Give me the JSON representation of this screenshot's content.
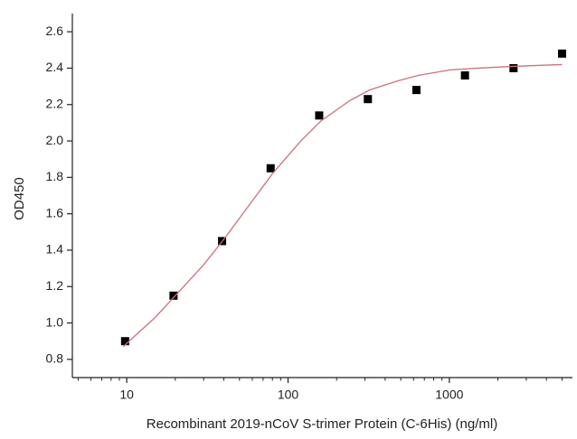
{
  "chart_data": {
    "type": "scatter",
    "xlabel": "Recombinant 2019-nCoV S-trimer Protein (C-6His) (ng/ml)",
    "ylabel": "OD450",
    "xscale": "log",
    "xlim": [
      4.6,
      5800
    ],
    "ylim": [
      0.7,
      2.7
    ],
    "xticks": [
      10,
      100,
      1000
    ],
    "xminor_ticks": [
      5,
      6,
      7,
      8,
      9,
      20,
      30,
      40,
      50,
      60,
      70,
      80,
      90,
      200,
      300,
      400,
      500,
      600,
      700,
      800,
      900,
      2000,
      3000,
      4000,
      5000
    ],
    "yticks": [
      {
        "value": 0.8,
        "label": "0.8"
      },
      {
        "value": 1.0,
        "label": "1.0"
      },
      1.2,
      1.4,
      1.6,
      1.8,
      {
        "value": 2.0,
        "label": "2.0"
      },
      2.2,
      2.4,
      2.6
    ],
    "grid": false,
    "series": [
      {
        "kind": "points",
        "color": "#000000",
        "x": [
          9.77,
          19.5,
          39,
          78,
          156,
          312.5,
          625,
          1250,
          2500,
          5000
        ],
        "values": [
          0.9,
          1.15,
          1.45,
          1.85,
          2.14,
          2.23,
          2.28,
          2.36,
          2.4,
          2.48
        ]
      },
      {
        "kind": "line",
        "color": "#c8737a",
        "x": [
          9.5,
          15,
          20,
          30,
          40,
          60,
          80,
          120,
          160,
          240,
          320,
          480,
          640,
          1000,
          1500,
          2500,
          5000
        ],
        "values": [
          0.87,
          1.03,
          1.15,
          1.32,
          1.46,
          1.67,
          1.82,
          2.0,
          2.11,
          2.22,
          2.28,
          2.33,
          2.36,
          2.39,
          2.4,
          2.41,
          2.42
        ]
      }
    ]
  }
}
